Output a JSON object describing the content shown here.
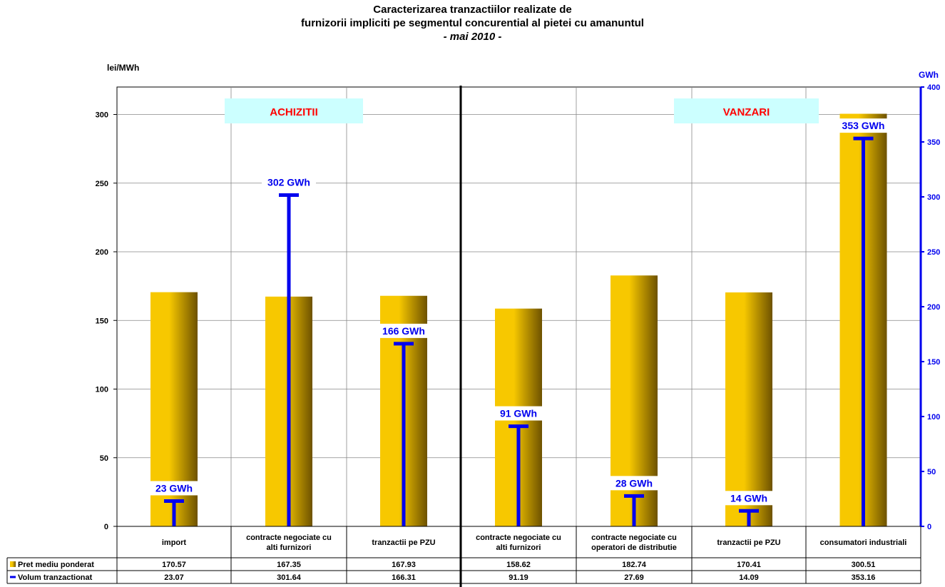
{
  "chart_data": {
    "type": "bar",
    "title": [
      "Caracterizarea tranzactiilor realizate de",
      "furnizorii impliciti pe segmentul concurential al pietei cu amanuntul",
      "- mai 2010 -"
    ],
    "y_left_label": "lei/MWh",
    "y_right_label": "GWh",
    "y_left_ticks": [
      0,
      50,
      100,
      150,
      200,
      250,
      300
    ],
    "y_left_lim": [
      0,
      320
    ],
    "y_right_ticks": [
      0,
      50,
      100,
      150,
      200,
      250,
      300,
      350,
      400
    ],
    "y_right_lim": [
      0,
      400
    ],
    "categories": [
      "import",
      "contracte negociate cu alti furnizori",
      "tranzactii pe PZU",
      "contracte negociate cu alti furnizori",
      "contracte negociate cu operatori de distributie",
      "tranzactii pe PZU",
      "consumatori industriali"
    ],
    "series": [
      {
        "name": "Pret mediu ponderat",
        "axis": "left",
        "type": "bar",
        "values": [
          170.57,
          167.35,
          167.93,
          158.62,
          182.74,
          170.41,
          300.51
        ],
        "labels": [
          "170.57",
          "167.35",
          "167.93",
          "158.62",
          "182.74",
          "170.41",
          "300.51"
        ]
      },
      {
        "name": "Volum tranzactionat",
        "axis": "right",
        "type": "line-marker",
        "values": [
          23.07,
          301.64,
          166.31,
          91.19,
          27.69,
          14.09,
          353.16
        ],
        "labels": [
          "23.07",
          "301.64",
          "166.31",
          "91.19",
          "27.69",
          "14.09",
          "353.16"
        ]
      }
    ],
    "volume_labels": [
      "23 GWh",
      "302 GWh",
      "166 GWh",
      "91 GWh",
      "28 GWh",
      "14 GWh",
      "353 GWh"
    ],
    "section_labels": [
      {
        "text": "ACHIZITII"
      },
      {
        "text": "VANZARI"
      }
    ],
    "colors": {
      "bar_light": "#f7c800",
      "bar_dark": "#6e5200",
      "volume": "#0000ee",
      "section_bg": "#ccffff",
      "section_text": "#ff0000"
    }
  }
}
